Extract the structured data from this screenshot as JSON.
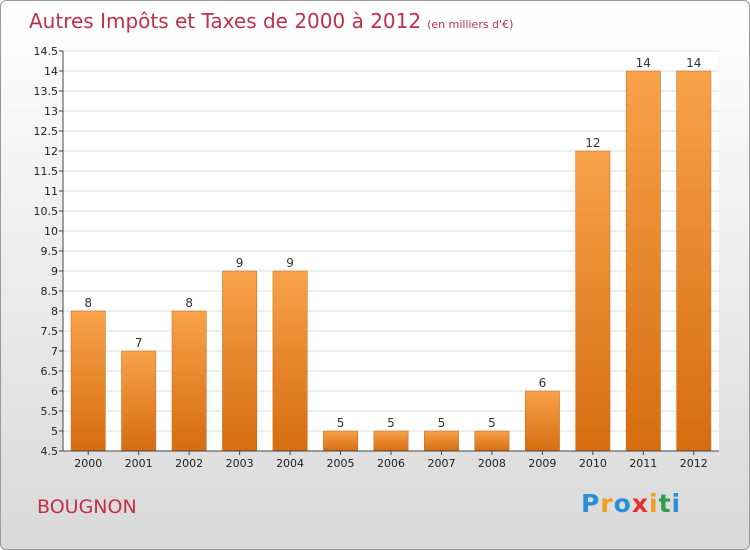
{
  "chart_data": {
    "type": "bar",
    "title": "Autres Impôts et Taxes de 2000 à 2012",
    "subtitle": "(en milliers d'€)",
    "categories": [
      "2000",
      "2001",
      "2002",
      "2003",
      "2004",
      "2005",
      "2006",
      "2007",
      "2008",
      "2009",
      "2010",
      "2011",
      "2012"
    ],
    "values": [
      8,
      7,
      8,
      9,
      9,
      5,
      5,
      5,
      5,
      6,
      12,
      14,
      14
    ],
    "ylim": [
      4.5,
      14.5
    ],
    "yticks": [
      "4.5",
      "5",
      "5.5",
      "6",
      "6.5",
      "7",
      "7.5",
      "8",
      "8.5",
      "9",
      "9.5",
      "10",
      "10.5",
      "11",
      "11.5",
      "12",
      "12.5",
      "13",
      "13.5",
      "14",
      "14.5"
    ],
    "grid": true,
    "bar_color": "#f08a2c"
  },
  "commune": "BOUGNON",
  "logo": {
    "letters": [
      "P",
      "r",
      "o",
      "x",
      "i",
      "t",
      "i"
    ],
    "colors": [
      "#2a8fd8",
      "#f0a020",
      "#2a8fd8",
      "#e83030",
      "#f0a020",
      "#30a050",
      "#2a8fd8"
    ]
  }
}
